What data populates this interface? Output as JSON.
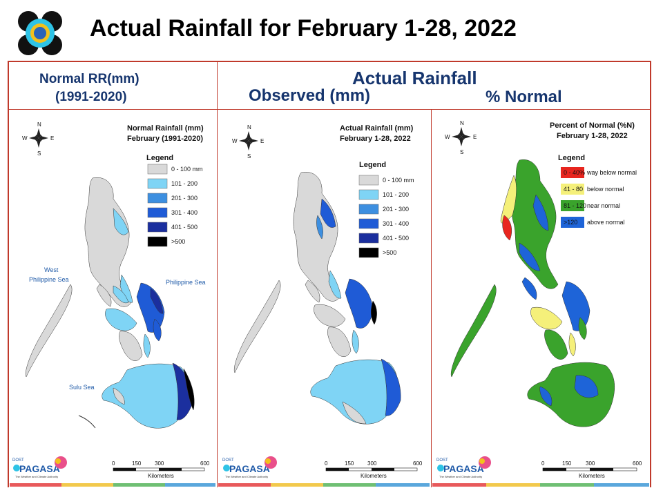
{
  "header": {
    "title": "Actual Rainfall for February 1-28, 2022"
  },
  "column_headers": {
    "normal_line1": "Normal RR(mm)",
    "normal_line2": "(1991-2020)",
    "actual": "Actual Rainfall",
    "observed": "Observed (mm)",
    "percent": "% Normal"
  },
  "panels": {
    "normal": {
      "title_line1": "Normal Rainfall (mm)",
      "title_line2": "February (1991-2020)",
      "legend_title": "Legend",
      "legend": [
        {
          "label": "0 - 100 mm",
          "color": "#d9d9d9"
        },
        {
          "label": "101 - 200",
          "color": "#7fd4f5"
        },
        {
          "label": "201 - 300",
          "color": "#3d8fe0"
        },
        {
          "label": "301 - 400",
          "color": "#1f5bd6"
        },
        {
          "label": "401 - 500",
          "color": "#1b2f9e"
        },
        {
          "label": ">500",
          "color": "#000000"
        }
      ],
      "seas": [
        "West",
        "Philippine Sea",
        "Philippine Sea",
        "Sulu Sea"
      ]
    },
    "actual": {
      "title_line1": "Actual Rainfall (mm)",
      "title_line2": "February 1-28, 2022",
      "legend_title": "Legend",
      "legend": [
        {
          "label": "0 - 100 mm",
          "color": "#d9d9d9"
        },
        {
          "label": "101 - 200",
          "color": "#7fd4f5"
        },
        {
          "label": "201 - 300",
          "color": "#3d8fe0"
        },
        {
          "label": "301 - 400",
          "color": "#1f5bd6"
        },
        {
          "label": "401 - 500",
          "color": "#1b2f9e"
        },
        {
          "label": ">500",
          "color": "#000000"
        }
      ]
    },
    "percent": {
      "title_line1": "Percent of Normal (%N)",
      "title_line2": "February 1-28, 2022",
      "legend_title": "Legend",
      "legend": [
        {
          "range": "0 - 40%",
          "desc": "way below normal",
          "color": "#e8261f"
        },
        {
          "range": "41 - 80",
          "desc": "below normal",
          "color": "#f5f07a"
        },
        {
          "range": "81 - 120",
          "desc": "near normal",
          "color": "#3aa32c"
        },
        {
          "range": ">120",
          "desc": "above normal",
          "color": "#1e64d8"
        }
      ]
    }
  },
  "compass": {
    "n": "N",
    "s": "S",
    "e": "E",
    "w": "W"
  },
  "scale": {
    "ticks": [
      "0",
      "150",
      "300",
      "600"
    ],
    "unit": "Kilometers"
  },
  "footer_logo": {
    "top": "DOST",
    "brand": "PAGASA",
    "tagline": "The Weather and Climate Authority"
  },
  "colors": {
    "frame": "#c0392b",
    "header_text": "#16356e"
  }
}
